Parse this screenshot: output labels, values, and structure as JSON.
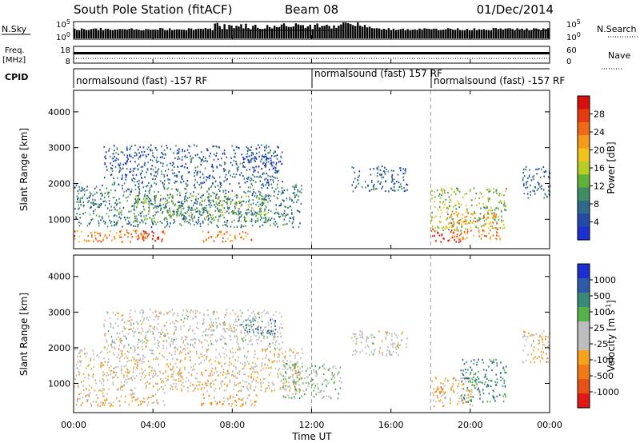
{
  "header": {
    "station": "South Pole Station (fitACF)",
    "beam": "Beam 08",
    "date": "01/Dec/2014"
  },
  "summary_panels": {
    "nsky": {
      "label": "N.Sky",
      "tick_top": "10^5",
      "tick_bottom": "10^0"
    },
    "nsearch": {
      "label": "N.Search",
      "tick_top": "10^5",
      "tick_bottom": "10^0"
    },
    "freq": {
      "label_line1": "Freq.",
      "label_line2": "[MHz]",
      "tick_top": "18",
      "tick_bottom": "8"
    },
    "nave": {
      "label": "Nave",
      "tick_top": "60",
      "tick_bottom": "0"
    },
    "cpid": {
      "label": "CPID",
      "segments": [
        {
          "text": "normalsound (fast) -157 RF",
          "start_hour": 0
        },
        {
          "text": "normalsound (fast) 157 RF",
          "start_hour": 12
        },
        {
          "text": "normalsound (fast) -157 RF",
          "start_hour": 18
        }
      ]
    }
  },
  "time_axis": {
    "label": "Time UT",
    "ticks": [
      "00:00",
      "04:00",
      "08:00",
      "12:00",
      "16:00",
      "20:00",
      "00:00"
    ]
  },
  "colors": {
    "power_scale": [
      "#1d2fd0",
      "#244aa8",
      "#2f6a8a",
      "#3f8c66",
      "#62b23a",
      "#b8cc28",
      "#f0c21c",
      "#f59a1a",
      "#ef6a16",
      "#e53a12",
      "#d8100d"
    ],
    "velocity_scale": [
      "#1d2fd0",
      "#2e5aa6",
      "#3a8a7a",
      "#55b24a",
      "#bdbdbd",
      "#bdbdbd",
      "#f7a21c",
      "#ef7a16",
      "#e8501a",
      "#de1a12"
    ]
  },
  "chart_data": [
    {
      "type": "heatmap",
      "title": "",
      "parameter": "Power",
      "xlabel": "Time UT",
      "ylabel": "Slant Range [km]",
      "x_range_hours": [
        0,
        24
      ],
      "xticks_hours": [
        0,
        4,
        8,
        12,
        16,
        20,
        24
      ],
      "ylim": [
        180,
        4600
      ],
      "yticks": [
        1000,
        2000,
        3000,
        4000
      ],
      "yticklabels": [
        "1000",
        "2000",
        "3000",
        "4000"
      ],
      "colorbar": {
        "label": "Power [dB]",
        "ticks": [
          "4",
          "8",
          "12",
          "16",
          "20",
          "24",
          "28"
        ],
        "range": [
          0,
          30
        ]
      },
      "grid": false,
      "dashed_time_markers_hours": [
        12,
        18
      ],
      "echo_regions": [
        {
          "t_start": 0.0,
          "t_end": 3.8,
          "r_min": 380,
          "r_max": 720,
          "value": 21
        },
        {
          "t_start": 2.6,
          "t_end": 4.6,
          "r_min": 400,
          "r_max": 700,
          "value": 26
        },
        {
          "t_start": 6.4,
          "t_end": 9.0,
          "r_min": 400,
          "r_max": 700,
          "value": 22
        },
        {
          "t_start": 0.0,
          "t_end": 11.5,
          "r_min": 800,
          "r_max": 2000,
          "value": 8
        },
        {
          "t_start": 3.0,
          "t_end": 9.8,
          "r_min": 950,
          "r_max": 1700,
          "value": 11
        },
        {
          "t_start": 1.5,
          "t_end": 10.5,
          "r_min": 2000,
          "r_max": 3100,
          "value": 6
        },
        {
          "t_start": 8.4,
          "t_end": 10.2,
          "r_min": 2400,
          "r_max": 2800,
          "value": 4
        },
        {
          "t_start": 14.0,
          "t_end": 16.8,
          "r_min": 1800,
          "r_max": 2500,
          "value": 6
        },
        {
          "t_start": 18.0,
          "t_end": 19.5,
          "r_min": 380,
          "r_max": 750,
          "value": 28
        },
        {
          "t_start": 19.0,
          "t_end": 21.5,
          "r_min": 450,
          "r_max": 1200,
          "value": 22
        },
        {
          "t_start": 18.0,
          "t_end": 21.8,
          "r_min": 700,
          "r_max": 1900,
          "value": 14
        },
        {
          "t_start": 22.6,
          "t_end": 24.0,
          "r_min": 1600,
          "r_max": 2500,
          "value": 6
        }
      ]
    },
    {
      "type": "heatmap",
      "title": "",
      "parameter": "Velocity",
      "xlabel": "Time UT",
      "ylabel": "Slant Range [km]",
      "x_range_hours": [
        0,
        24
      ],
      "xticks_hours": [
        0,
        4,
        8,
        12,
        16,
        20,
        24
      ],
      "ylim": [
        180,
        4600
      ],
      "yticks": [
        1000,
        2000,
        3000,
        4000
      ],
      "yticklabels": [
        "1000",
        "2000",
        "3000",
        "4000"
      ],
      "colorbar": {
        "label": "Velocity [m s^-1]",
        "ticks": [
          "1000",
          "500",
          "100",
          "25",
          "-25",
          "-100",
          "-500",
          "-1000"
        ],
        "range": [
          -1000,
          1000
        ]
      },
      "grid": false,
      "dashed_time_markers_hours": [
        12,
        18
      ],
      "echo_regions": [
        {
          "t_start": 0.0,
          "t_end": 4.6,
          "r_min": 380,
          "r_max": 760,
          "value": -200
        },
        {
          "t_start": 6.4,
          "t_end": 9.4,
          "r_min": 380,
          "r_max": 720,
          "value": -300
        },
        {
          "t_start": 0.0,
          "t_end": 11.5,
          "r_min": 800,
          "r_max": 2000,
          "value": -150
        },
        {
          "t_start": 1.5,
          "t_end": 10.5,
          "r_min": 2000,
          "r_max": 3100,
          "value": 0
        },
        {
          "t_start": 8.4,
          "t_end": 10.2,
          "r_min": 2400,
          "r_max": 2800,
          "value": 600
        },
        {
          "t_start": 10.5,
          "t_end": 13.5,
          "r_min": 600,
          "r_max": 1600,
          "value": 200
        },
        {
          "t_start": 14.0,
          "t_end": 16.8,
          "r_min": 1800,
          "r_max": 2500,
          "value": 0
        },
        {
          "t_start": 18.0,
          "t_end": 20.2,
          "r_min": 380,
          "r_max": 1200,
          "value": -300
        },
        {
          "t_start": 19.5,
          "t_end": 21.8,
          "r_min": 500,
          "r_max": 1700,
          "value": 500
        },
        {
          "t_start": 22.6,
          "t_end": 24.0,
          "r_min": 1600,
          "r_max": 2500,
          "value": -200
        }
      ]
    }
  ]
}
